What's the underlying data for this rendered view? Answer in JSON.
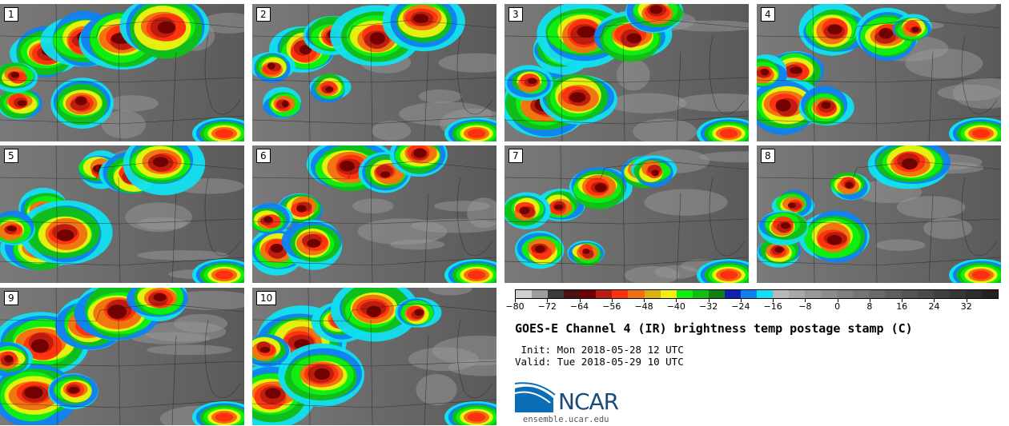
{
  "panels": [
    {
      "label": "1"
    },
    {
      "label": "2"
    },
    {
      "label": "3"
    },
    {
      "label": "4"
    },
    {
      "label": "5"
    },
    {
      "label": "6"
    },
    {
      "label": "7"
    },
    {
      "label": "8"
    },
    {
      "label": "9"
    },
    {
      "label": "10"
    }
  ],
  "colorbar": {
    "colors": [
      "#cfcfcf",
      "#9e9e9e",
      "#3a3a3a",
      "#4a1414",
      "#6e0000",
      "#b81c10",
      "#ff3010",
      "#f07010",
      "#d8b010",
      "#f0f010",
      "#10f010",
      "#10c010",
      "#108010",
      "#1020b0",
      "#1080f0",
      "#10e0f0",
      "#b8b8b8",
      "#a8a8a8",
      "#989898",
      "#8c8c8c",
      "#808080",
      "#747474",
      "#6a6a6a",
      "#5e5e5e",
      "#545454",
      "#4a4a4a",
      "#404040",
      "#363636",
      "#2c2c2c",
      "#222222"
    ],
    "ticks": [
      "−80",
      "−72",
      "−64",
      "−56",
      "−48",
      "−40",
      "−32",
      "−24",
      "−16",
      "−8",
      "0",
      "8",
      "16",
      "24",
      "32"
    ]
  },
  "title": "GOES-E Channel 4 (IR) brightness temp postage stamp (C)",
  "init": " Init: Mon 2018-05-28 12 UTC",
  "valid": "Valid: Tue 2018-05-29 10 UTC",
  "logo": {
    "text": "NCAR",
    "site": "ensemble.ucar.edu"
  }
}
